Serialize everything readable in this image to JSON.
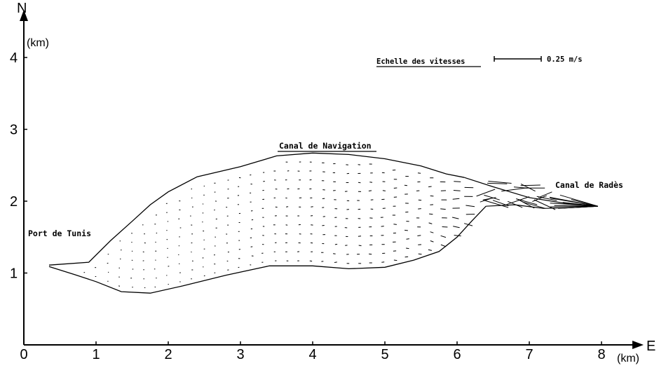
{
  "axes": {
    "x": {
      "unit": "(km)",
      "direction": "E",
      "ticks": [
        "0",
        "1",
        "2",
        "3",
        "4",
        "5",
        "6",
        "7",
        "8"
      ],
      "range": [
        0,
        8.7
      ]
    },
    "y": {
      "unit": "(km)",
      "direction": "N",
      "ticks": [
        "1",
        "2",
        "3",
        "4"
      ],
      "range": [
        0,
        4.7
      ]
    }
  },
  "labels": {
    "port": "Port de Tunis",
    "canal_navigation": "Canal de Navigation",
    "canal_rades": "Canal de Radès"
  },
  "scale": {
    "title": "Echelle des vitesses",
    "value_text": "0.25 m/s",
    "speed_ms": 0.25
  },
  "boundary": {
    "north": [
      [
        0.35,
        1.11
      ],
      [
        0.9,
        1.15
      ],
      [
        1.2,
        1.45
      ],
      [
        1.5,
        1.72
      ],
      [
        1.75,
        1.95
      ],
      [
        2.0,
        2.13
      ],
      [
        2.4,
        2.34
      ],
      [
        3.0,
        2.48
      ],
      [
        3.5,
        2.63
      ],
      [
        4.0,
        2.67
      ],
      [
        4.5,
        2.65
      ],
      [
        5.0,
        2.59
      ],
      [
        5.5,
        2.49
      ],
      [
        5.85,
        2.38
      ],
      [
        6.1,
        2.33
      ]
    ],
    "south": [
      [
        0.35,
        1.09
      ],
      [
        0.7,
        0.98
      ],
      [
        1.0,
        0.88
      ],
      [
        1.35,
        0.74
      ],
      [
        1.75,
        0.72
      ],
      [
        2.2,
        0.82
      ],
      [
        2.8,
        0.97
      ],
      [
        3.4,
        1.1
      ],
      [
        4.0,
        1.1
      ],
      [
        4.5,
        1.06
      ],
      [
        5.0,
        1.08
      ],
      [
        5.4,
        1.18
      ],
      [
        5.75,
        1.3
      ],
      [
        6.0,
        1.5
      ],
      [
        6.2,
        1.72
      ],
      [
        6.4,
        1.93
      ]
    ],
    "rades_north": [
      [
        6.1,
        2.33
      ],
      [
        6.5,
        2.2
      ],
      [
        7.0,
        2.05
      ],
      [
        7.5,
        1.97
      ],
      [
        7.95,
        1.93
      ]
    ],
    "rades_south": [
      [
        6.4,
        1.93
      ],
      [
        6.8,
        1.95
      ],
      [
        7.2,
        1.9
      ],
      [
        7.6,
        1.91
      ],
      [
        7.95,
        1.93
      ]
    ]
  }
}
